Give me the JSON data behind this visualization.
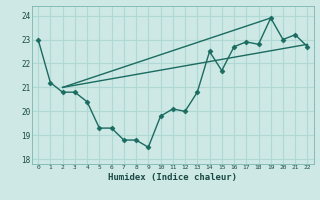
{
  "title": "",
  "xlabel": "Humidex (Indice chaleur)",
  "ylabel": "",
  "bg_color": "#cde8e5",
  "grid_color": "#b0d8d4",
  "line_color": "#1a6b60",
  "xlim": [
    -0.5,
    22.5
  ],
  "ylim": [
    17.8,
    24.4
  ],
  "yticks": [
    18,
    19,
    20,
    21,
    22,
    23,
    24
  ],
  "xticks": [
    0,
    1,
    2,
    3,
    4,
    5,
    6,
    7,
    8,
    9,
    10,
    11,
    12,
    13,
    14,
    15,
    16,
    17,
    18,
    19,
    20,
    21,
    22
  ],
  "data_x": [
    0,
    1,
    2,
    3,
    4,
    5,
    6,
    7,
    8,
    9,
    10,
    11,
    12,
    13,
    14,
    15,
    16,
    17,
    18,
    19,
    20,
    21,
    22
  ],
  "data_y": [
    23.0,
    21.2,
    20.8,
    20.8,
    20.4,
    19.3,
    19.3,
    18.8,
    18.8,
    18.5,
    19.8,
    20.1,
    20.0,
    20.8,
    22.5,
    21.7,
    22.7,
    22.9,
    22.8,
    23.9,
    23.0,
    23.2,
    22.7
  ],
  "line1_x": [
    2,
    22
  ],
  "line1_y": [
    21.0,
    22.8
  ],
  "line2_x": [
    2,
    19
  ],
  "line2_y": [
    21.0,
    23.9
  ]
}
